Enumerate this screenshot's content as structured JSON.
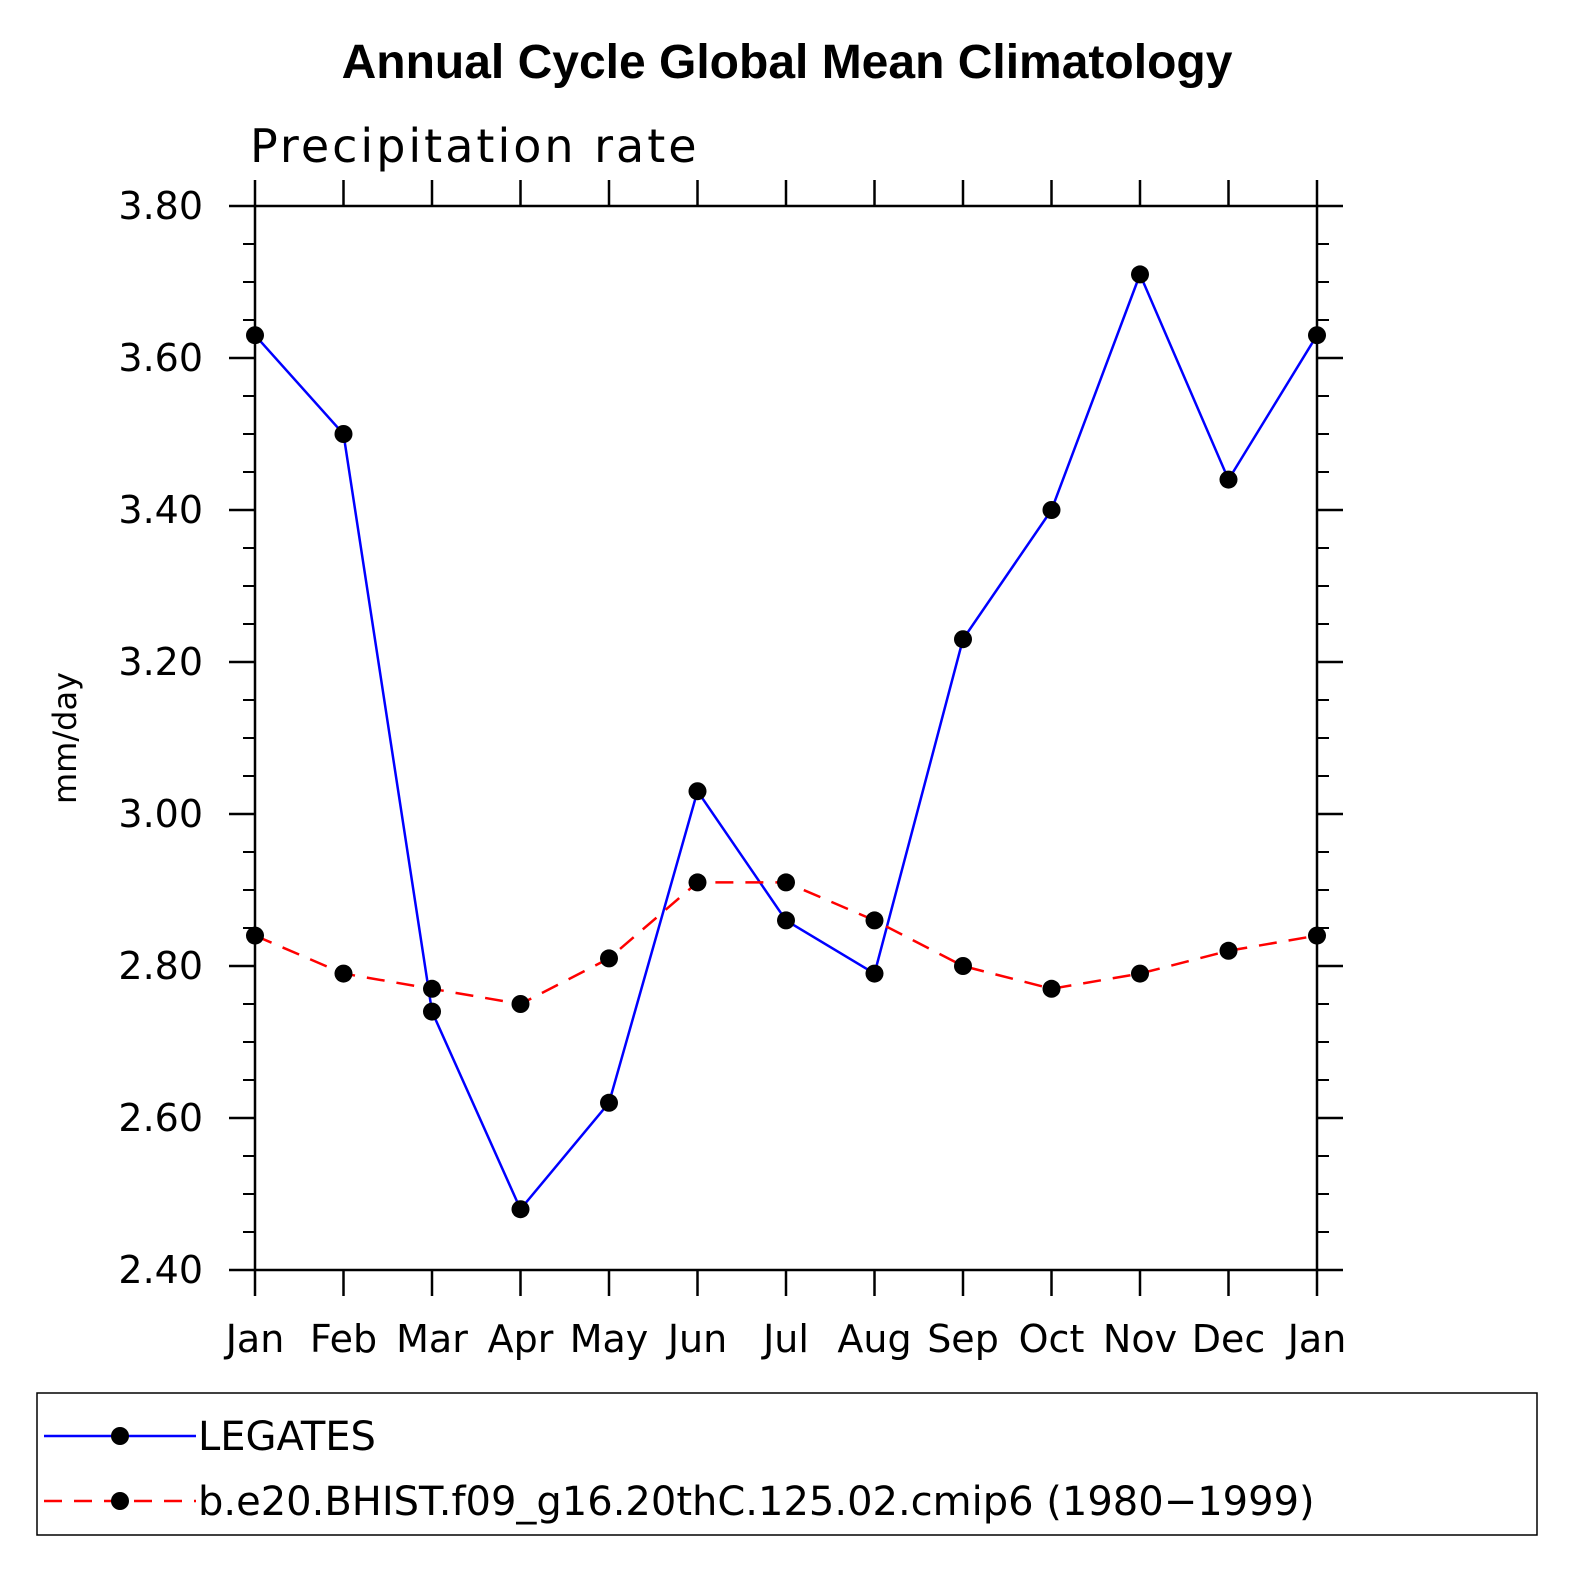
{
  "chart_data": {
    "type": "line",
    "title": "Annual Cycle Global Mean Climatology",
    "subtitle": "Precipitation rate",
    "ylabel": "mm/day",
    "categories": [
      "Jan",
      "Feb",
      "Mar",
      "Apr",
      "May",
      "Jun",
      "Jul",
      "Aug",
      "Sep",
      "Oct",
      "Nov",
      "Dec",
      "Jan"
    ],
    "ylim": [
      2.4,
      3.8
    ],
    "yticks": [
      "2.40",
      "2.60",
      "2.80",
      "3.00",
      "3.20",
      "3.40",
      "3.60",
      "3.80"
    ],
    "grid": false,
    "legend_position": "bottom",
    "series": [
      {
        "name": "LEGATES",
        "color": "#0000ff",
        "style": "solid",
        "values": [
          3.63,
          3.5,
          2.74,
          2.48,
          2.62,
          3.03,
          2.86,
          2.79,
          3.23,
          3.4,
          3.71,
          3.44,
          3.63
        ]
      },
      {
        "name": "b.e20.BHIST.f09_g16.20thC.125.02.cmip6 (1980−1999)",
        "color": "#ff0000",
        "style": "dashed",
        "values": [
          2.84,
          2.79,
          2.77,
          2.75,
          2.81,
          2.91,
          2.91,
          2.86,
          2.8,
          2.77,
          2.79,
          2.82,
          2.84
        ]
      }
    ]
  }
}
